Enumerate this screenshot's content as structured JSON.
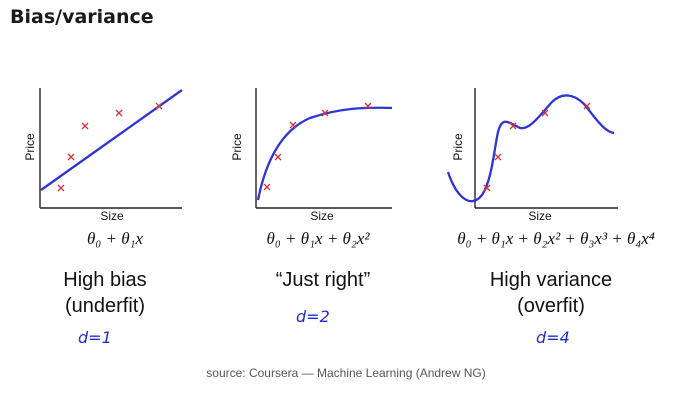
{
  "title": "Bias/variance",
  "source": "source: Coursera — Machine Learning (Andrew NG)",
  "colors": {
    "curve": "#2e34d8",
    "marker": "#d0393c",
    "axis": "#222222",
    "handwriting": "#1f2bd6"
  },
  "panels": [
    {
      "xlabel": "Size",
      "ylabel": "Price",
      "formula": "θ₀ + θ₁x",
      "caption_line1": "High bias",
      "caption_line2": "(underfit)",
      "handwriting": "d=1"
    },
    {
      "xlabel": "Size",
      "ylabel": "Price",
      "formula": "θ₀ + θ₁x + θ₂x²",
      "caption_line1": "“Just right”",
      "caption_line2": "",
      "handwriting": "d=2"
    },
    {
      "xlabel": "Size",
      "ylabel": "Price",
      "formula": "θ₀ + θ₁x + θ₂x² + θ₃x³ + θ₄x⁴",
      "caption_line1": "High variance",
      "caption_line2": "(overfit)",
      "handwriting": "d=4"
    }
  ]
}
